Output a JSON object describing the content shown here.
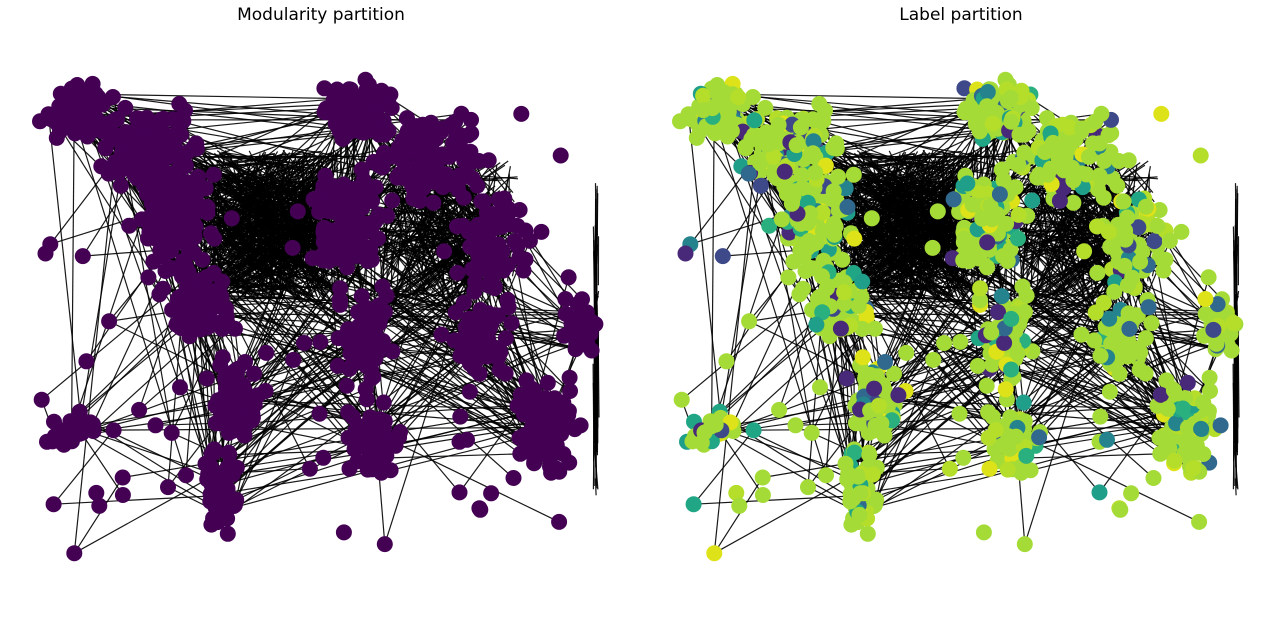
{
  "figure": {
    "panels": [
      {
        "title": "Modularity partition",
        "node_color": "#440154",
        "edge_color": "#000000",
        "community_palette": [
          "#440154"
        ]
      },
      {
        "title": "Label partition",
        "node_color": "#a5db36",
        "edge_color": "#000000",
        "community_palette": [
          "#a5db36",
          "#b5de2b",
          "#dde318",
          "#21a685",
          "#2ab07f",
          "#1f9e89",
          "#25838e",
          "#31688e",
          "#3e4989",
          "#482878"
        ]
      }
    ]
  }
}
